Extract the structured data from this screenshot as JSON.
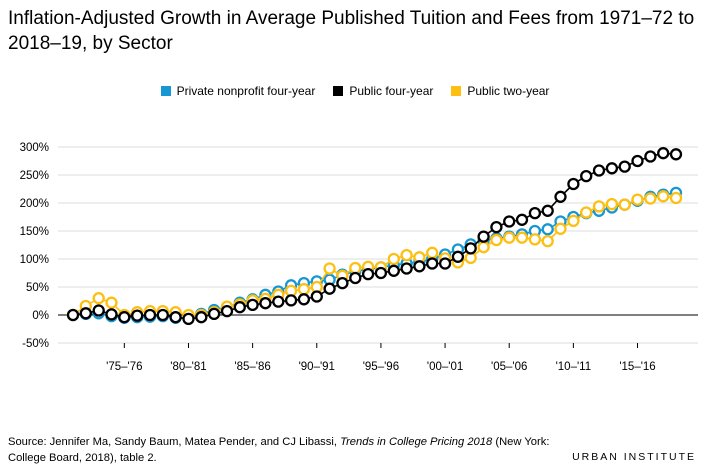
{
  "title": "Inflation-Adjusted Growth in Average Published Tuition and Fees from 1971–72 to 2018–19, by Sector",
  "source": {
    "prefix": "Source: Jennifer Ma, Sandy Baum, Matea Pender, and CJ Libassi, ",
    "italic": "Trends in College Pricing 2018",
    "suffix": " (New York: College Board, 2018), table 2."
  },
  "brand": "URBAN INSTITUTE",
  "colors": {
    "private": "#1696d2",
    "public4": "#000000",
    "public2": "#fdbf11",
    "grid": "#dedede",
    "zero": "#000000"
  },
  "chart_data": {
    "type": "line",
    "title": "Inflation-Adjusted Growth in Average Published Tuition and Fees from 1971–72 to 2018–19, by Sector",
    "xlabel": "",
    "ylabel": "",
    "ylim": [
      -50,
      300
    ],
    "y_ticks": [
      "-50%",
      "0%",
      "50%",
      "100%",
      "150%",
      "200%",
      "250%",
      "300%"
    ],
    "y_tick_values": [
      -50,
      0,
      50,
      100,
      150,
      200,
      250,
      300
    ],
    "x_tick_labels": [
      "'75–'76",
      "'80–'81",
      "'85–'86",
      "'90–'91",
      "'95–'96",
      "'00–'01",
      "'05–'06",
      "'10–'11",
      "'15–'16"
    ],
    "x_tick_indices": [
      4,
      9,
      14,
      19,
      24,
      29,
      34,
      39,
      44
    ],
    "grid": true,
    "legend_position": "top-center",
    "x": [
      "1971–72",
      "1972–73",
      "1973–74",
      "1974–75",
      "1975–76",
      "1976–77",
      "1977–78",
      "1978–79",
      "1979–80",
      "1980–81",
      "1981–82",
      "1982–83",
      "1983–84",
      "1984–85",
      "1985–86",
      "1986–87",
      "1987–88",
      "1988–89",
      "1989–90",
      "1990–91",
      "1991–92",
      "1992–93",
      "1993–94",
      "1994–95",
      "1995–96",
      "1996–97",
      "1997–98",
      "1998–99",
      "1999–00",
      "2000–01",
      "2001–02",
      "2002–03",
      "2003–04",
      "2004–05",
      "2005–06",
      "2006–07",
      "2007–08",
      "2008–09",
      "2009–10",
      "2010–11",
      "2011–12",
      "2012–13",
      "2013–14",
      "2014–15",
      "2015–16",
      "2016–17",
      "2017–18",
      "2018–19"
    ],
    "series": [
      {
        "name": "Private nonprofit four-year",
        "color_key": "private",
        "values": [
          0,
          2,
          3,
          -2,
          -5,
          -4,
          -3,
          -2,
          -5,
          -5,
          2,
          9,
          14,
          22,
          28,
          36,
          42,
          53,
          57,
          60,
          63,
          72,
          78,
          82,
          85,
          89,
          92,
          95,
          100,
          108,
          117,
          126,
          133,
          137,
          140,
          144,
          150,
          153,
          167,
          175,
          182,
          186,
          192,
          197,
          204,
          211,
          215,
          218
        ]
      },
      {
        "name": "Public four-year",
        "color_key": "public4",
        "values": [
          0,
          3,
          8,
          1,
          -4,
          -1,
          0,
          0,
          -4,
          -7,
          -4,
          2,
          7,
          14,
          18,
          21,
          24,
          26,
          28,
          33,
          47,
          57,
          66,
          73,
          75,
          79,
          83,
          87,
          92,
          92,
          104,
          119,
          140,
          157,
          167,
          170,
          182,
          186,
          211,
          234,
          248,
          258,
          262,
          265,
          275,
          283,
          289,
          287
        ]
      },
      {
        "name": "Public two-year",
        "color_key": "public2",
        "values": [
          0,
          16,
          30,
          22,
          0,
          5,
          7,
          7,
          5,
          0,
          0,
          5,
          15,
          19,
          26,
          29,
          36,
          43,
          46,
          50,
          83,
          70,
          84,
          86,
          85,
          100,
          107,
          103,
          111,
          101,
          94,
          102,
          121,
          134,
          138,
          138,
          135,
          132,
          154,
          168,
          183,
          194,
          198,
          197,
          206,
          208,
          212,
          209
        ]
      }
    ]
  }
}
